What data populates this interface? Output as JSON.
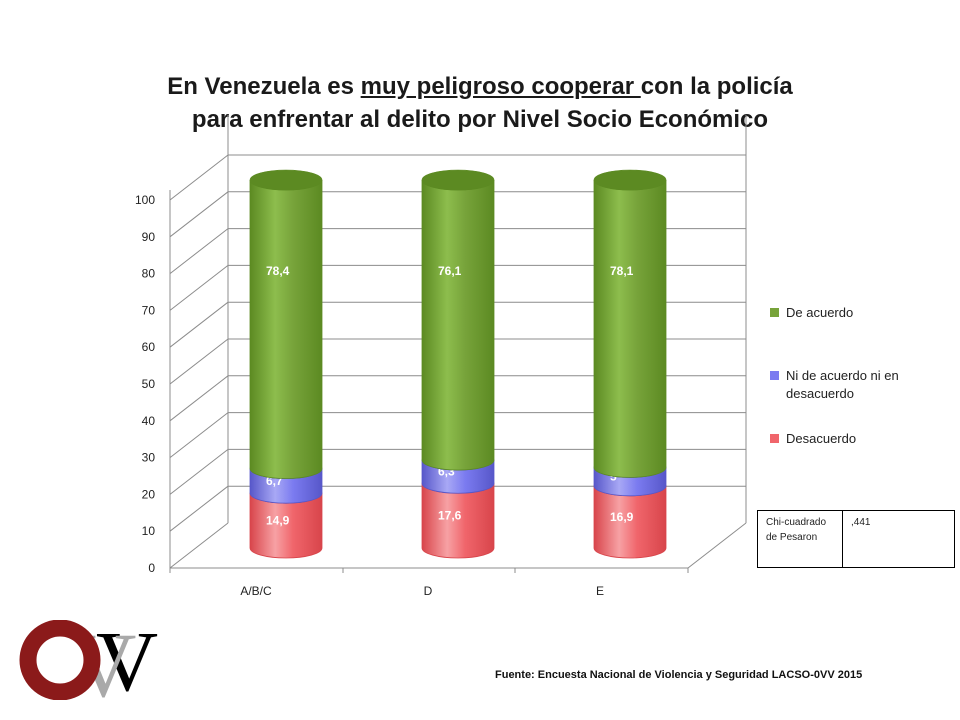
{
  "title": {
    "line1_pre": "En Venezuela es ",
    "line1_ul": "muy peligroso cooperar ",
    "line1_post": "con la policía",
    "line2": "para enfrentar al delito por Nivel Socio Económico"
  },
  "colors": {
    "de_acuerdo": "#77a33a",
    "ni": "#7b7bf0",
    "desacuerdo": "#f0656b"
  },
  "chart_data": {
    "type": "bar",
    "stacked": true,
    "style": "3d-cylinder",
    "categories": [
      "A/B/C",
      "D",
      "E"
    ],
    "series": [
      {
        "name": "Desacuerdo",
        "values": [
          14.9,
          17.6,
          16.9
        ],
        "labels": [
          "14,9",
          "17,6",
          "16,9"
        ]
      },
      {
        "name": "Ni de acuerdo ni en desacuerdo",
        "values": [
          6.7,
          6.3,
          5
        ],
        "labels": [
          "6,7",
          "6,3",
          "5"
        ]
      },
      {
        "name": "De acuerdo",
        "values": [
          78.4,
          76.1,
          78.1
        ],
        "labels": [
          "78,4",
          "76,1",
          "78,1"
        ]
      }
    ],
    "ylim": [
      0,
      100
    ],
    "yticks": [
      "0",
      "10",
      "20",
      "30",
      "40",
      "50",
      "60",
      "70",
      "80",
      "90",
      "100"
    ],
    "grid": true,
    "legend_position": "right",
    "xlabel": "",
    "ylabel": ""
  },
  "legend": {
    "items": [
      {
        "label": "De acuerdo"
      },
      {
        "label": "Ni de acuerdo ni en desacuerdo"
      },
      {
        "label": "Desacuerdo"
      }
    ]
  },
  "stats": {
    "label": "Chi-cuadrado de Pesaron",
    "value": ",441"
  },
  "source": "Fuente: Encuesta Nacional de Violencia y Seguridad LACSO-0VV 2015",
  "logo": {
    "text_o": "O",
    "text_v": "V",
    "text_w": "V",
    "colors": {
      "o": "#8b1a1a",
      "v1": "#a9a9a9",
      "v2": "#000000"
    }
  }
}
